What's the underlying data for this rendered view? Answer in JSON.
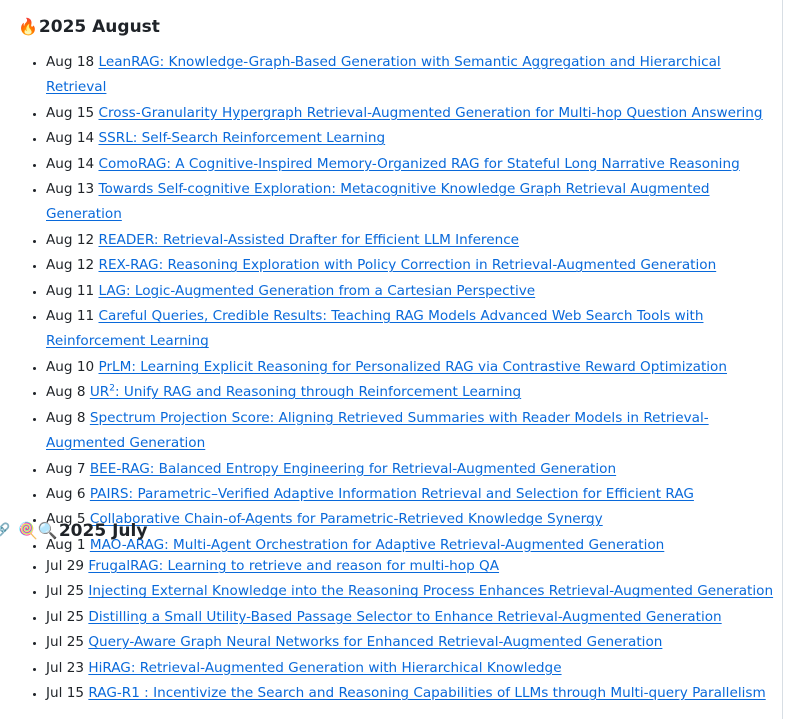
{
  "sections": [
    {
      "icon": "fire-icon",
      "emoji": "🔥",
      "title": "2025 August",
      "items": [
        {
          "date": "Aug 18",
          "title": "LeanRAG: Knowledge-Graph-Based Generation with Semantic Aggregation and Hierarchical Retrieval"
        },
        {
          "date": "Aug 15",
          "title": "Cross-Granularity Hypergraph Retrieval-Augmented Generation for Multi-hop Question Answering"
        },
        {
          "date": "Aug 14",
          "title": "SSRL: Self-Search Reinforcement Learning"
        },
        {
          "date": "Aug 14",
          "title": "ComoRAG: A Cognitive-Inspired Memory-Organized RAG for Stateful Long Narrative Reasoning"
        },
        {
          "date": "Aug 13",
          "title": "Towards Self-cognitive Exploration: Metacognitive Knowledge Graph Retrieval Augmented Generation"
        },
        {
          "date": "Aug 12",
          "title": "READER: Retrieval-Assisted Drafter for Efficient LLM Inference"
        },
        {
          "date": "Aug 12",
          "title": "REX-RAG: Reasoning Exploration with Policy Correction in Retrieval-Augmented Generation"
        },
        {
          "date": "Aug 11",
          "title": "LAG: Logic-Augmented Generation from a Cartesian Perspective"
        },
        {
          "date": "Aug 11",
          "title": "Careful Queries, Credible Results: Teaching RAG Models Advanced Web Search Tools with Reinforcement Learning"
        },
        {
          "date": "Aug 10",
          "title": "PrLM: Learning Explicit Reasoning for Personalized RAG via Contrastive Reward Optimization"
        },
        {
          "date": "Aug 8",
          "title_pre": "UR",
          "title_sup": "2",
          "title": ": Unify RAG and Reasoning through Reinforcement Learning"
        },
        {
          "date": "Aug 8",
          "title": "Spectrum Projection Score: Aligning Retrieved Summaries with Reader Models in Retrieval-Augmented Generation"
        },
        {
          "date": "Aug 7",
          "title": "BEE-RAG: Balanced Entropy Engineering for Retrieval-Augmented Generation"
        },
        {
          "date": "Aug 6",
          "title": "PAIRS: Parametric–Verified Adaptive Information Retrieval and Selection for Efficient RAG"
        },
        {
          "date": "Aug 5",
          "title": "Collaborative Chain-of-Agents for Parametric-Retrieved Knowledge Synergy"
        },
        {
          "date": "Aug 1",
          "title": "MAO-ARAG: Multi-Agent Orchestration for Adaptive Retrieval-Augmented Generation"
        }
      ]
    },
    {
      "icon": "lollipop-magnifier-icon",
      "emoji": "🍭🔍",
      "anchor": "🔗",
      "title": "2025 July",
      "items": [
        {
          "date": "Jul 29",
          "title": "FrugalRAG: Learning to retrieve and reason for multi-hop QA"
        },
        {
          "date": "Jul 25",
          "title": "Injecting External Knowledge into the Reasoning Process Enhances Retrieval-Augmented Generation"
        },
        {
          "date": "Jul 25",
          "title": "Distilling a Small Utility-Based Passage Selector to Enhance Retrieval-Augmented Generation"
        },
        {
          "date": "Jul 25",
          "title": "Query-Aware Graph Neural Networks for Enhanced Retrieval-Augmented Generation"
        },
        {
          "date": "Jul 23",
          "title": "HiRAG: Retrieval-Augmented Generation with Hierarchical Knowledge"
        },
        {
          "date": "Jul 15",
          "title": "RAG-R1 : Incentivize the Search and Reasoning Capabilities of LLMs through Multi-query Parallelism"
        }
      ]
    }
  ]
}
